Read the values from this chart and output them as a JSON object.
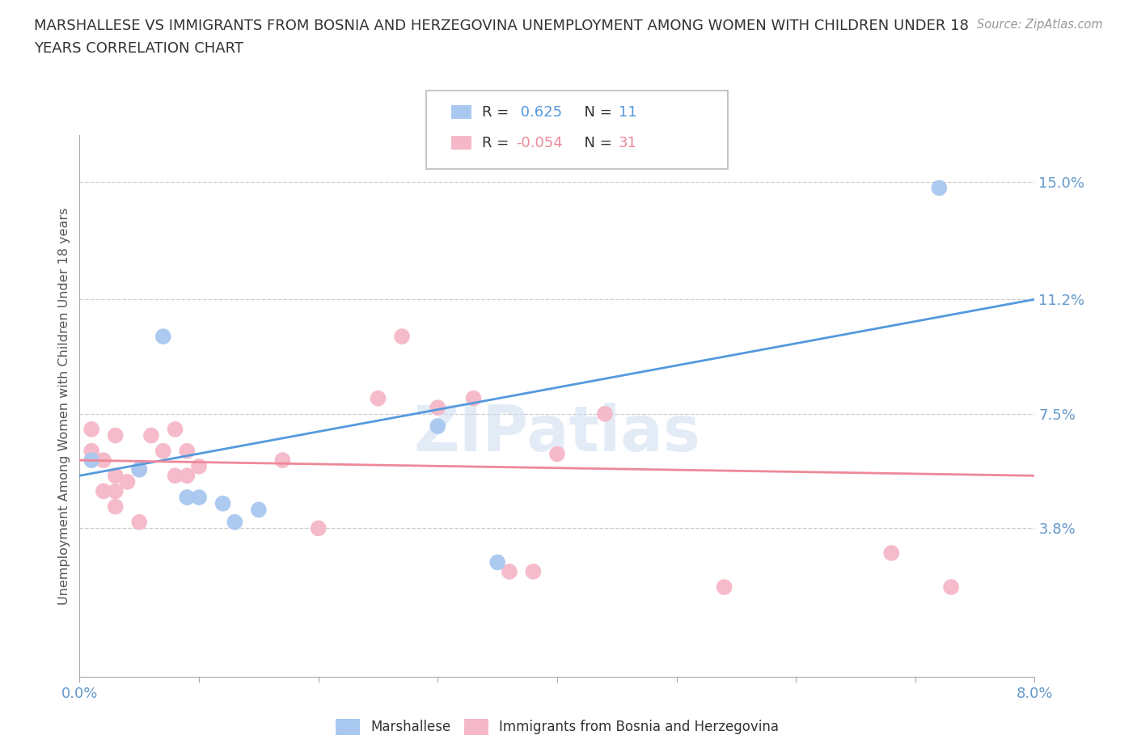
{
  "title_line1": "MARSHALLESE VS IMMIGRANTS FROM BOSNIA AND HERZEGOVINA UNEMPLOYMENT AMONG WOMEN WITH CHILDREN UNDER 18",
  "title_line2": "YEARS CORRELATION CHART",
  "source": "Source: ZipAtlas.com",
  "ylabel": "Unemployment Among Women with Children Under 18 years",
  "xlim": [
    0.0,
    0.08
  ],
  "ylim": [
    -0.01,
    0.165
  ],
  "yticks": [
    0.038,
    0.075,
    0.112,
    0.15
  ],
  "ytick_labels": [
    "3.8%",
    "7.5%",
    "11.2%",
    "15.0%"
  ],
  "xticks": [
    0.0,
    0.01,
    0.02,
    0.03,
    0.04,
    0.05,
    0.06,
    0.07,
    0.08
  ],
  "xtick_labels": [
    "0.0%",
    "",
    "",
    "",
    "",
    "",
    "",
    "",
    "8.0%"
  ],
  "marshallese_color": "#a8c8f0",
  "bosnia_color": "#f5b8c8",
  "line_blue": "#5599dd",
  "line_pink": "#ee8899",
  "label_color": "#6699cc",
  "watermark": "ZIPatlas",
  "marshallese_x": [
    0.001,
    0.005,
    0.007,
    0.009,
    0.01,
    0.012,
    0.013,
    0.015,
    0.03,
    0.035,
    0.072
  ],
  "marshallese_y": [
    0.06,
    0.057,
    0.1,
    0.048,
    0.048,
    0.046,
    0.04,
    0.044,
    0.071,
    0.027,
    0.148
  ],
  "bosnia_x": [
    0.001,
    0.001,
    0.002,
    0.002,
    0.003,
    0.003,
    0.003,
    0.003,
    0.004,
    0.005,
    0.005,
    0.006,
    0.007,
    0.008,
    0.008,
    0.009,
    0.009,
    0.01,
    0.017,
    0.02,
    0.025,
    0.027,
    0.03,
    0.033,
    0.036,
    0.038,
    0.04,
    0.044,
    0.054,
    0.068,
    0.073
  ],
  "bosnia_y": [
    0.063,
    0.07,
    0.05,
    0.06,
    0.045,
    0.05,
    0.055,
    0.068,
    0.053,
    0.057,
    0.04,
    0.068,
    0.063,
    0.07,
    0.055,
    0.063,
    0.055,
    0.058,
    0.06,
    0.038,
    0.08,
    0.1,
    0.077,
    0.08,
    0.024,
    0.024,
    0.062,
    0.075,
    0.019,
    0.03,
    0.019
  ],
  "blue_line_x0": 0.0,
  "blue_line_y0": 0.055,
  "blue_line_x1": 0.08,
  "blue_line_y1": 0.112,
  "pink_line_x0": 0.0,
  "pink_line_y0": 0.06,
  "pink_line_x1": 0.08,
  "pink_line_y1": 0.055
}
